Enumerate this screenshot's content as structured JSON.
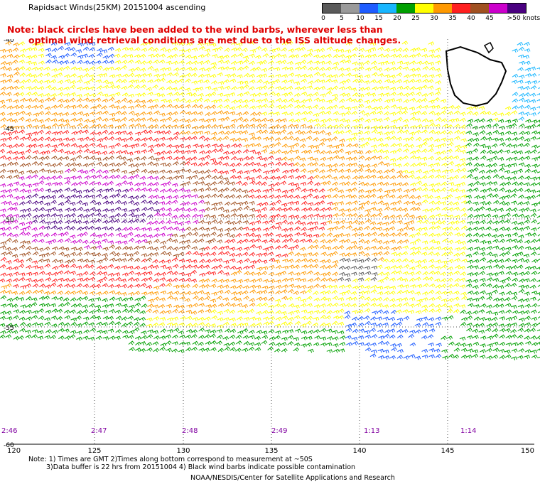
{
  "header": {
    "title": "Rapidsact Winds(25KM) 20151004 ascending",
    "note_line1": "Note: black circles have been added to the wind barbs, wherever less than",
    "note_line2": "optimal wind retrieval conditions are met due to the ISS altitude changes."
  },
  "colorbar": {
    "labels": [
      "0",
      "5",
      "10",
      "15",
      "20",
      "25",
      "30",
      "35",
      "40",
      "45",
      ">50 knots"
    ],
    "colors": [
      "#5a5a5a",
      "#9a9a9a",
      "#1e5cff",
      "#18b6ff",
      "#00a000",
      "#ffff00",
      "#ff9900",
      "#ff2020",
      "#a05020",
      "#cc00cc",
      "#4a0080"
    ]
  },
  "map": {
    "lon_labels": [
      "120",
      "125",
      "130",
      "135",
      "140",
      "145",
      "150"
    ],
    "lat_labels": [
      "-40",
      "-45",
      "-50",
      "-55",
      "-60"
    ],
    "time_labels": [
      "2:46",
      "2:47",
      "2:48",
      "2:49",
      "1:13",
      "1:14"
    ],
    "land_color": "#ffffff",
    "grid_color": "#555555",
    "time_label_color": "#8000a0"
  },
  "footer": {
    "line1": "Note: 1) Times are GMT 2)Times along bottom correspond to measurement at ~50S",
    "line2": "3)Data buffer is 22 hrs from 20151004 4) Black wind barbs indicate possible contamination",
    "line3": "NOAA/NESDIS/Center for Satellite Applications and Research"
  }
}
